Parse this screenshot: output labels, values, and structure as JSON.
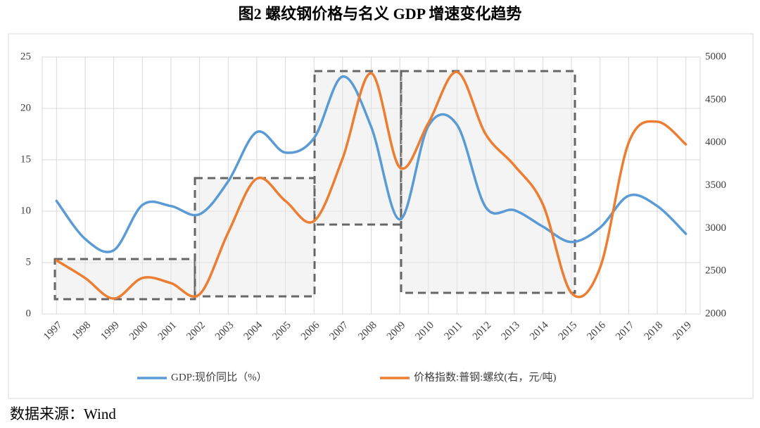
{
  "chart_data": {
    "type": "line",
    "title": "图2  螺纹钢价格与名义 GDP 增速变化趋势",
    "source": "数据来源：Wind",
    "categories": [
      "1997",
      "1998",
      "1999",
      "2000",
      "2001",
      "2002",
      "2003",
      "2004",
      "2005",
      "2006",
      "2007",
      "2008",
      "2009",
      "2010",
      "2011",
      "2012",
      "2013",
      "2014",
      "2015",
      "2016",
      "2017",
      "2018",
      "2019"
    ],
    "series": [
      {
        "name": "GDP:现价同比（%）",
        "color": "#5b9bd5",
        "values": [
          11.0,
          7.3,
          6.2,
          10.6,
          10.5,
          9.7,
          12.9,
          17.7,
          15.7,
          17.1,
          23.1,
          18.2,
          9.2,
          18.3,
          18.4,
          10.4,
          10.1,
          8.5,
          7.0,
          8.4,
          11.5,
          10.5,
          7.8
        ]
      },
      {
        "name": "价格指数:普钢:螺纹(右，元/吨)",
        "color": "#ed7d31",
        "axis": "y2",
        "values": [
          2625,
          2420,
          2180,
          2420,
          2360,
          2230,
          2950,
          3580,
          3320,
          3085,
          3815,
          4810,
          3710,
          4230,
          4825,
          4100,
          3735,
          3280,
          2245,
          2540,
          4000,
          4245,
          3980
        ]
      }
    ],
    "ylim": [
      0,
      25
    ],
    "yticks": [
      0,
      5,
      10,
      15,
      20,
      25
    ],
    "y2lim": [
      2000,
      5000
    ],
    "y2ticks": [
      2000,
      2500,
      3000,
      3500,
      4000,
      4500,
      5000
    ],
    "grid": true,
    "legend": "bottom"
  }
}
